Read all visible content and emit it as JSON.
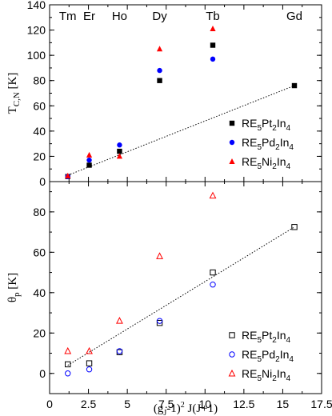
{
  "chart_data": [
    {
      "type": "scatter",
      "ylabel": "T",
      "ylabel_sub": "C,N",
      "ylabel_unit": " [K]",
      "xlim": [
        0,
        17.5
      ],
      "ylim": [
        0,
        140
      ],
      "yticks": [
        "0",
        "20",
        "40",
        "60",
        "80",
        "100",
        "120",
        "140"
      ],
      "element_labels": [
        {
          "text": "Tm",
          "x": 1.17
        },
        {
          "text": "Er",
          "x": 2.55
        },
        {
          "text": "Ho",
          "x": 4.5
        },
        {
          "text": "Dy",
          "x": 7.08
        },
        {
          "text": "Tb",
          "x": 10.5
        },
        {
          "text": "Gd",
          "x": 15.75
        }
      ],
      "legend_position": "bottom-right",
      "series": [
        {
          "name": "RE",
          "sub1": "5",
          "mid": "Pt",
          "sub2": "2",
          "mid2": "In",
          "sub3": "4",
          "marker": "square-filled",
          "color": "#000000",
          "points": [
            [
              1.17,
              4
            ],
            [
              2.55,
              13
            ],
            [
              4.5,
              24
            ],
            [
              7.08,
              80
            ],
            [
              10.5,
              108
            ],
            [
              15.75,
              76
            ]
          ]
        },
        {
          "name": "RE",
          "sub1": "5",
          "mid": "Pd",
          "sub2": "2",
          "mid2": "In",
          "sub3": "4",
          "marker": "circle-filled",
          "color": "#0000ff",
          "points": [
            [
              1.17,
              4
            ],
            [
              2.55,
              17
            ],
            [
              4.5,
              29
            ],
            [
              7.08,
              88
            ],
            [
              10.5,
              97
            ]
          ]
        },
        {
          "name": "RE",
          "sub1": "5",
          "mid": "Ni",
          "sub2": "2",
          "mid2": "In",
          "sub3": "4",
          "marker": "triangle-filled",
          "color": "#ff0000",
          "points": [
            [
              1.17,
              4.5
            ],
            [
              2.55,
              21
            ],
            [
              4.5,
              20
            ],
            [
              7.08,
              105
            ],
            [
              10.5,
              121
            ]
          ]
        }
      ],
      "trendline": [
        [
          1.17,
          5
        ],
        [
          15.75,
          76
        ]
      ]
    },
    {
      "type": "scatter",
      "ylabel": "θ",
      "ylabel_sub": "p",
      "ylabel_unit": " [K]",
      "xlabel_main": "(g",
      "xlabel_sub": "J",
      "xlabel_mid": "-1)",
      "xlabel_sup": "2",
      "xlabel_end": " J(J+1)",
      "xlim": [
        0,
        17.5
      ],
      "ylim": [
        -10,
        95
      ],
      "xticks": [
        "0",
        "2.5",
        "5",
        "7.5",
        "10",
        "12.5",
        "15",
        "17.5"
      ],
      "yticks": [
        "0",
        "20",
        "40",
        "60",
        "80"
      ],
      "legend_position": "bottom-right",
      "series": [
        {
          "name": "RE",
          "sub1": "5",
          "mid": "Pt",
          "sub2": "2",
          "mid2": "In",
          "sub3": "4",
          "marker": "square-open",
          "color": "#000000",
          "points": [
            [
              1.17,
              4.5
            ],
            [
              2.55,
              5
            ],
            [
              4.5,
              10.5
            ],
            [
              7.08,
              25
            ],
            [
              10.5,
              50
            ],
            [
              15.75,
              72.5
            ]
          ]
        },
        {
          "name": "RE",
          "sub1": "5",
          "mid": "Pd",
          "sub2": "2",
          "mid2": "In",
          "sub3": "4",
          "marker": "circle-open",
          "color": "#0000ff",
          "points": [
            [
              1.17,
              0
            ],
            [
              2.55,
              2
            ],
            [
              4.5,
              11
            ],
            [
              7.08,
              26
            ],
            [
              10.5,
              44
            ]
          ]
        },
        {
          "name": "RE",
          "sub1": "5",
          "mid": "Ni",
          "sub2": "2",
          "mid2": "In",
          "sub3": "4",
          "marker": "triangle-open",
          "color": "#ff0000",
          "points": [
            [
              1.17,
              11
            ],
            [
              2.55,
              11
            ],
            [
              4.5,
              26
            ],
            [
              7.08,
              58
            ],
            [
              10.5,
              88
            ]
          ]
        }
      ],
      "trendline": [
        [
          1.17,
          4
        ],
        [
          15.75,
          72.5
        ]
      ]
    }
  ]
}
